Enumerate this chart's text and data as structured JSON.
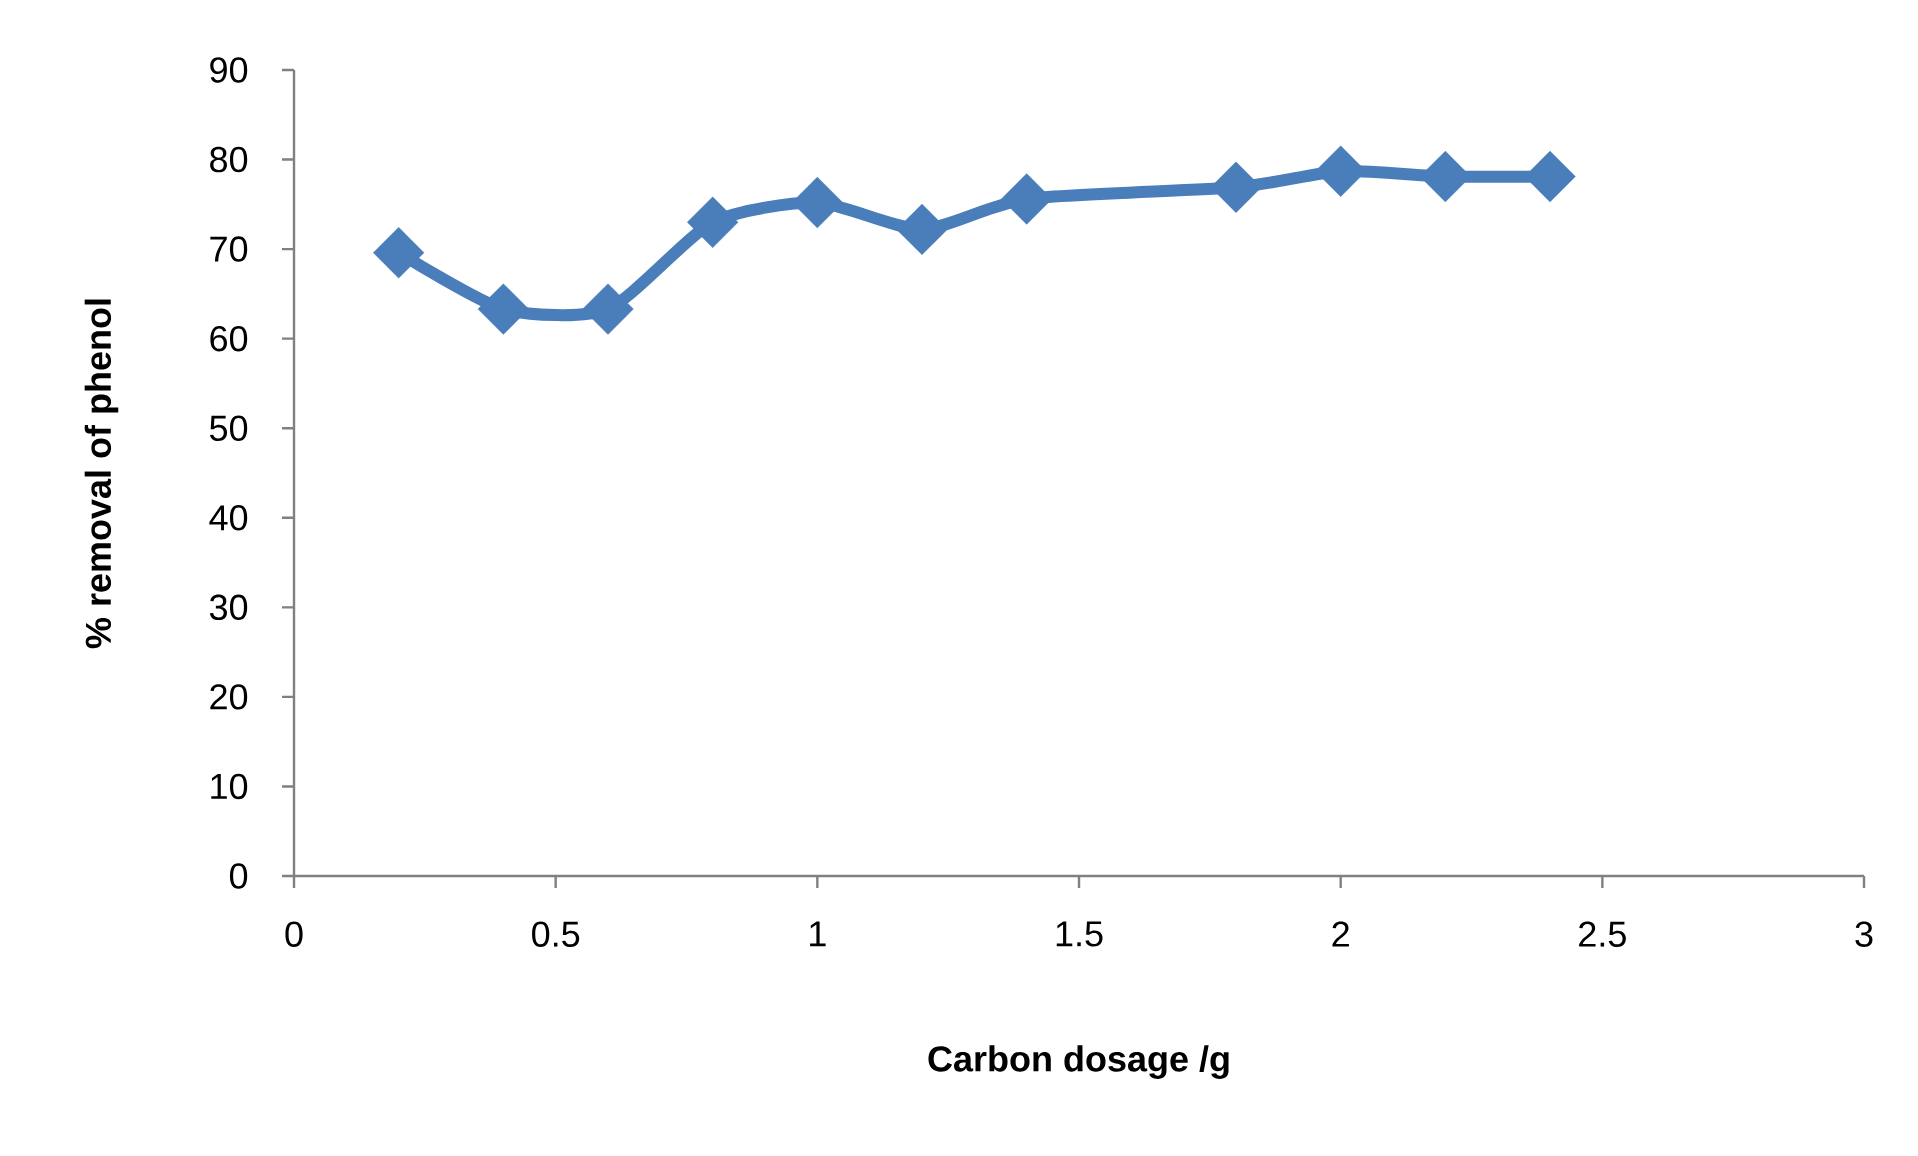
{
  "chart_data": {
    "type": "line",
    "xlabel": "Carbon dosage /g",
    "ylabel": "% removal of phenol",
    "x": [
      0.2,
      0.4,
      0.6,
      0.8,
      1.0,
      1.2,
      1.4,
      1.8,
      2.0,
      2.2,
      2.4
    ],
    "series": [
      {
        "color": "#4a7ebb",
        "values": [
          69.6,
          63.3,
          63.3,
          73.0,
          75.2,
          72.2,
          75.6,
          76.9,
          78.7,
          78.1,
          78.1
        ]
      }
    ],
    "xlim": [
      0,
      3
    ],
    "xticks": [
      0,
      0.5,
      1,
      1.5,
      2,
      2.5,
      3
    ],
    "ylim": [
      0,
      90
    ],
    "yticks": [
      0,
      10,
      20,
      30,
      40,
      50,
      60,
      70,
      80,
      90
    ],
    "marker": "diamond",
    "line_style": "solid"
  }
}
